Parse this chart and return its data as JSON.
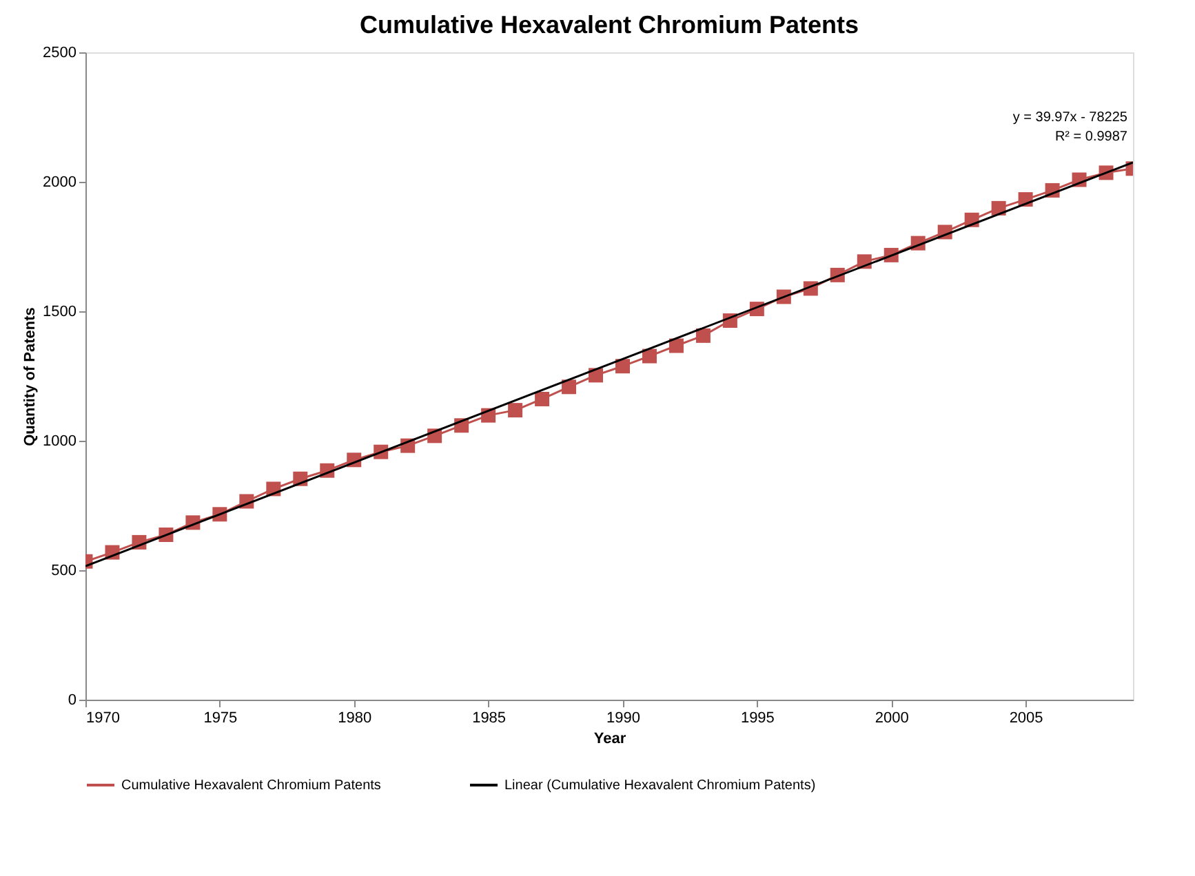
{
  "chart_data": {
    "type": "line",
    "title": "Cumulative Hexavalent Chromium Patents",
    "xlabel": "Year",
    "ylabel": "Quantity of Patents",
    "x": [
      1970,
      1971,
      1972,
      1973,
      1974,
      1975,
      1976,
      1977,
      1978,
      1979,
      1980,
      1981,
      1982,
      1983,
      1984,
      1985,
      1986,
      1987,
      1988,
      1989,
      1990,
      1991,
      1992,
      1993,
      1994,
      1995,
      1996,
      1997,
      1998,
      1999,
      2000,
      2001,
      2002,
      2003,
      2004,
      2005,
      2006,
      2007,
      2008,
      2009
    ],
    "series": [
      {
        "name": "Cumulative Hexavalent Chromium Patents",
        "color": "#c0504d",
        "marker": "square",
        "values": [
          534,
          569,
          608,
          637,
          684,
          716,
          766,
          814,
          853,
          885,
          926,
          957,
          981,
          1019,
          1059,
          1098,
          1118,
          1161,
          1208,
          1253,
          1288,
          1327,
          1367,
          1406,
          1464,
          1509,
          1556,
          1588,
          1640,
          1692,
          1717,
          1763,
          1806,
          1853,
          1898,
          1932,
          1967,
          2008,
          2035,
          2051
        ]
      },
      {
        "name": "Linear (Cumulative Hexavalent Chromium Patents)",
        "type": "line",
        "color": "#000000",
        "marker": "none",
        "x": [
          1970,
          2009
        ],
        "values": [
          516,
          2075
        ]
      }
    ],
    "annotations": [
      "y = 39.97x - 78225",
      "R² = 0.9987"
    ],
    "xlim": [
      1970,
      2009
    ],
    "xticks": [
      1970,
      1975,
      1980,
      1985,
      1990,
      1995,
      2000,
      2005
    ],
    "ylim": [
      0,
      2500
    ],
    "yticks": [
      0,
      500,
      1000,
      1500,
      2000,
      2500
    ],
    "grid": false,
    "legend": "bottom",
    "line_style": "solid"
  }
}
